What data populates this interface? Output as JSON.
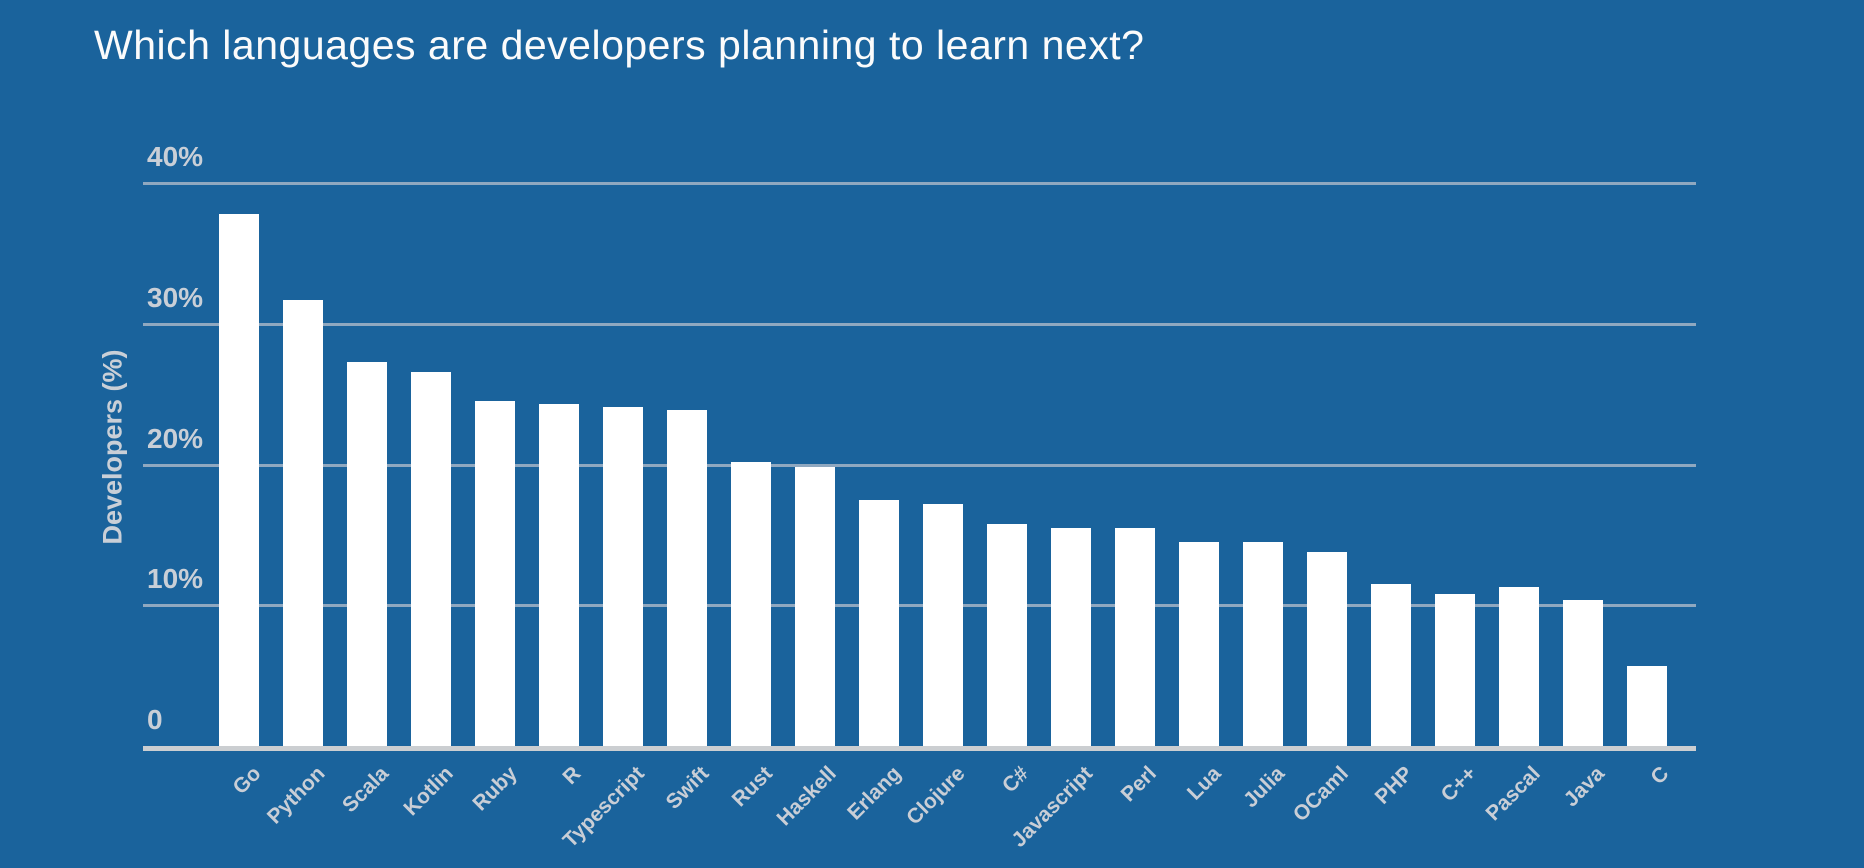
{
  "page": {
    "background_color": "#1A639C"
  },
  "chart_data": {
    "type": "bar",
    "title": "Which languages are developers planning to learn next?",
    "ylabel": "Developers (%)",
    "xlabel": "",
    "unit": "%",
    "categories": [
      "Go",
      "Python",
      "Scala",
      "Kotlin",
      "Ruby",
      "R",
      "Typescript",
      "Swift",
      "Rust",
      "Haskell",
      "Erlang",
      "Clojure",
      "C#",
      "Javascript",
      "Perl",
      "Lua",
      "Julia",
      "OCaml",
      "PHP",
      "C++",
      "Pascal",
      "Java",
      "C"
    ],
    "values": [
      37.8,
      31.7,
      27.3,
      26.6,
      24.5,
      24.3,
      24.1,
      23.9,
      20.2,
      19.8,
      17.5,
      17.2,
      15.8,
      15.5,
      15.5,
      14.5,
      14.5,
      13.8,
      11.5,
      10.8,
      11.3,
      10.4,
      5.7
    ],
    "ylim": [
      0,
      40
    ],
    "yticks": [
      {
        "value": 40,
        "label": "40%"
      },
      {
        "value": 30,
        "label": "30%"
      },
      {
        "value": 20,
        "label": "20%"
      },
      {
        "value": 10,
        "label": "10%"
      },
      {
        "value": 0,
        "label": "0"
      }
    ],
    "grid": true,
    "legend": false,
    "x_label_rotation_deg": -45,
    "colors": {
      "bar": "#FFFFFF",
      "background": "#1A639C",
      "gridline": "#8FA8C0",
      "axis_line": "#CBCED1",
      "tick_labels": "#C9CFD7",
      "title": "#FBFBFB"
    }
  }
}
